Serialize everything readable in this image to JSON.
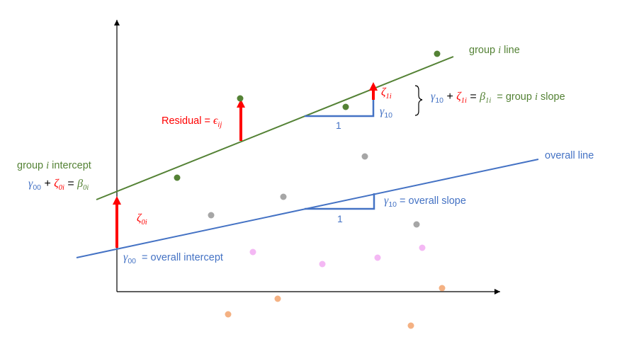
{
  "colors": {
    "green": "#548235",
    "blue": "#4472C4",
    "red": "#FF0000",
    "black": "#000000",
    "gray": "#A6A6A6",
    "pink": "#F4B8F4",
    "peach": "#F4B183"
  },
  "labels": {
    "group_line": {
      "prefix": "group ",
      "var": "i",
      "suffix": " line"
    },
    "overall_line": "overall line",
    "group_intercept": {
      "prefix": "group ",
      "var": "i",
      "suffix": " intercept"
    },
    "group_intercept_eq": {
      "g": "γ",
      "g_sub": "00",
      "plus": " + ",
      "z": "ζ",
      "z_sub": "0i",
      "eq": " = ",
      "b": "β",
      "b_sub": "0i"
    },
    "overall_intercept": {
      "g": "γ",
      "g_sub": "00",
      "text": "  = overall intercept"
    },
    "overall_slope": {
      "g": "γ",
      "g_sub": "10",
      "text": " = overall slope"
    },
    "zeta_0i": {
      "sym": "ζ",
      "sub": "0i"
    },
    "residual": {
      "text": "Residual = ",
      "sym": "ϵ",
      "sub": "ij"
    },
    "zeta_1i": {
      "sym": "ζ",
      "sub": "1i"
    },
    "gamma_10": {
      "sym": "γ",
      "sub": "10"
    },
    "group_slope_eq": {
      "g": "γ",
      "g_sub": "10",
      "plus": " + ",
      "z": "ζ",
      "z_sub": "1i",
      "eq": " = ",
      "b": "β",
      "b_sub": "1i",
      "text": "  = group ",
      "var": "i",
      "end": " slope"
    },
    "run_group": "1",
    "run_overall": "1"
  }
}
